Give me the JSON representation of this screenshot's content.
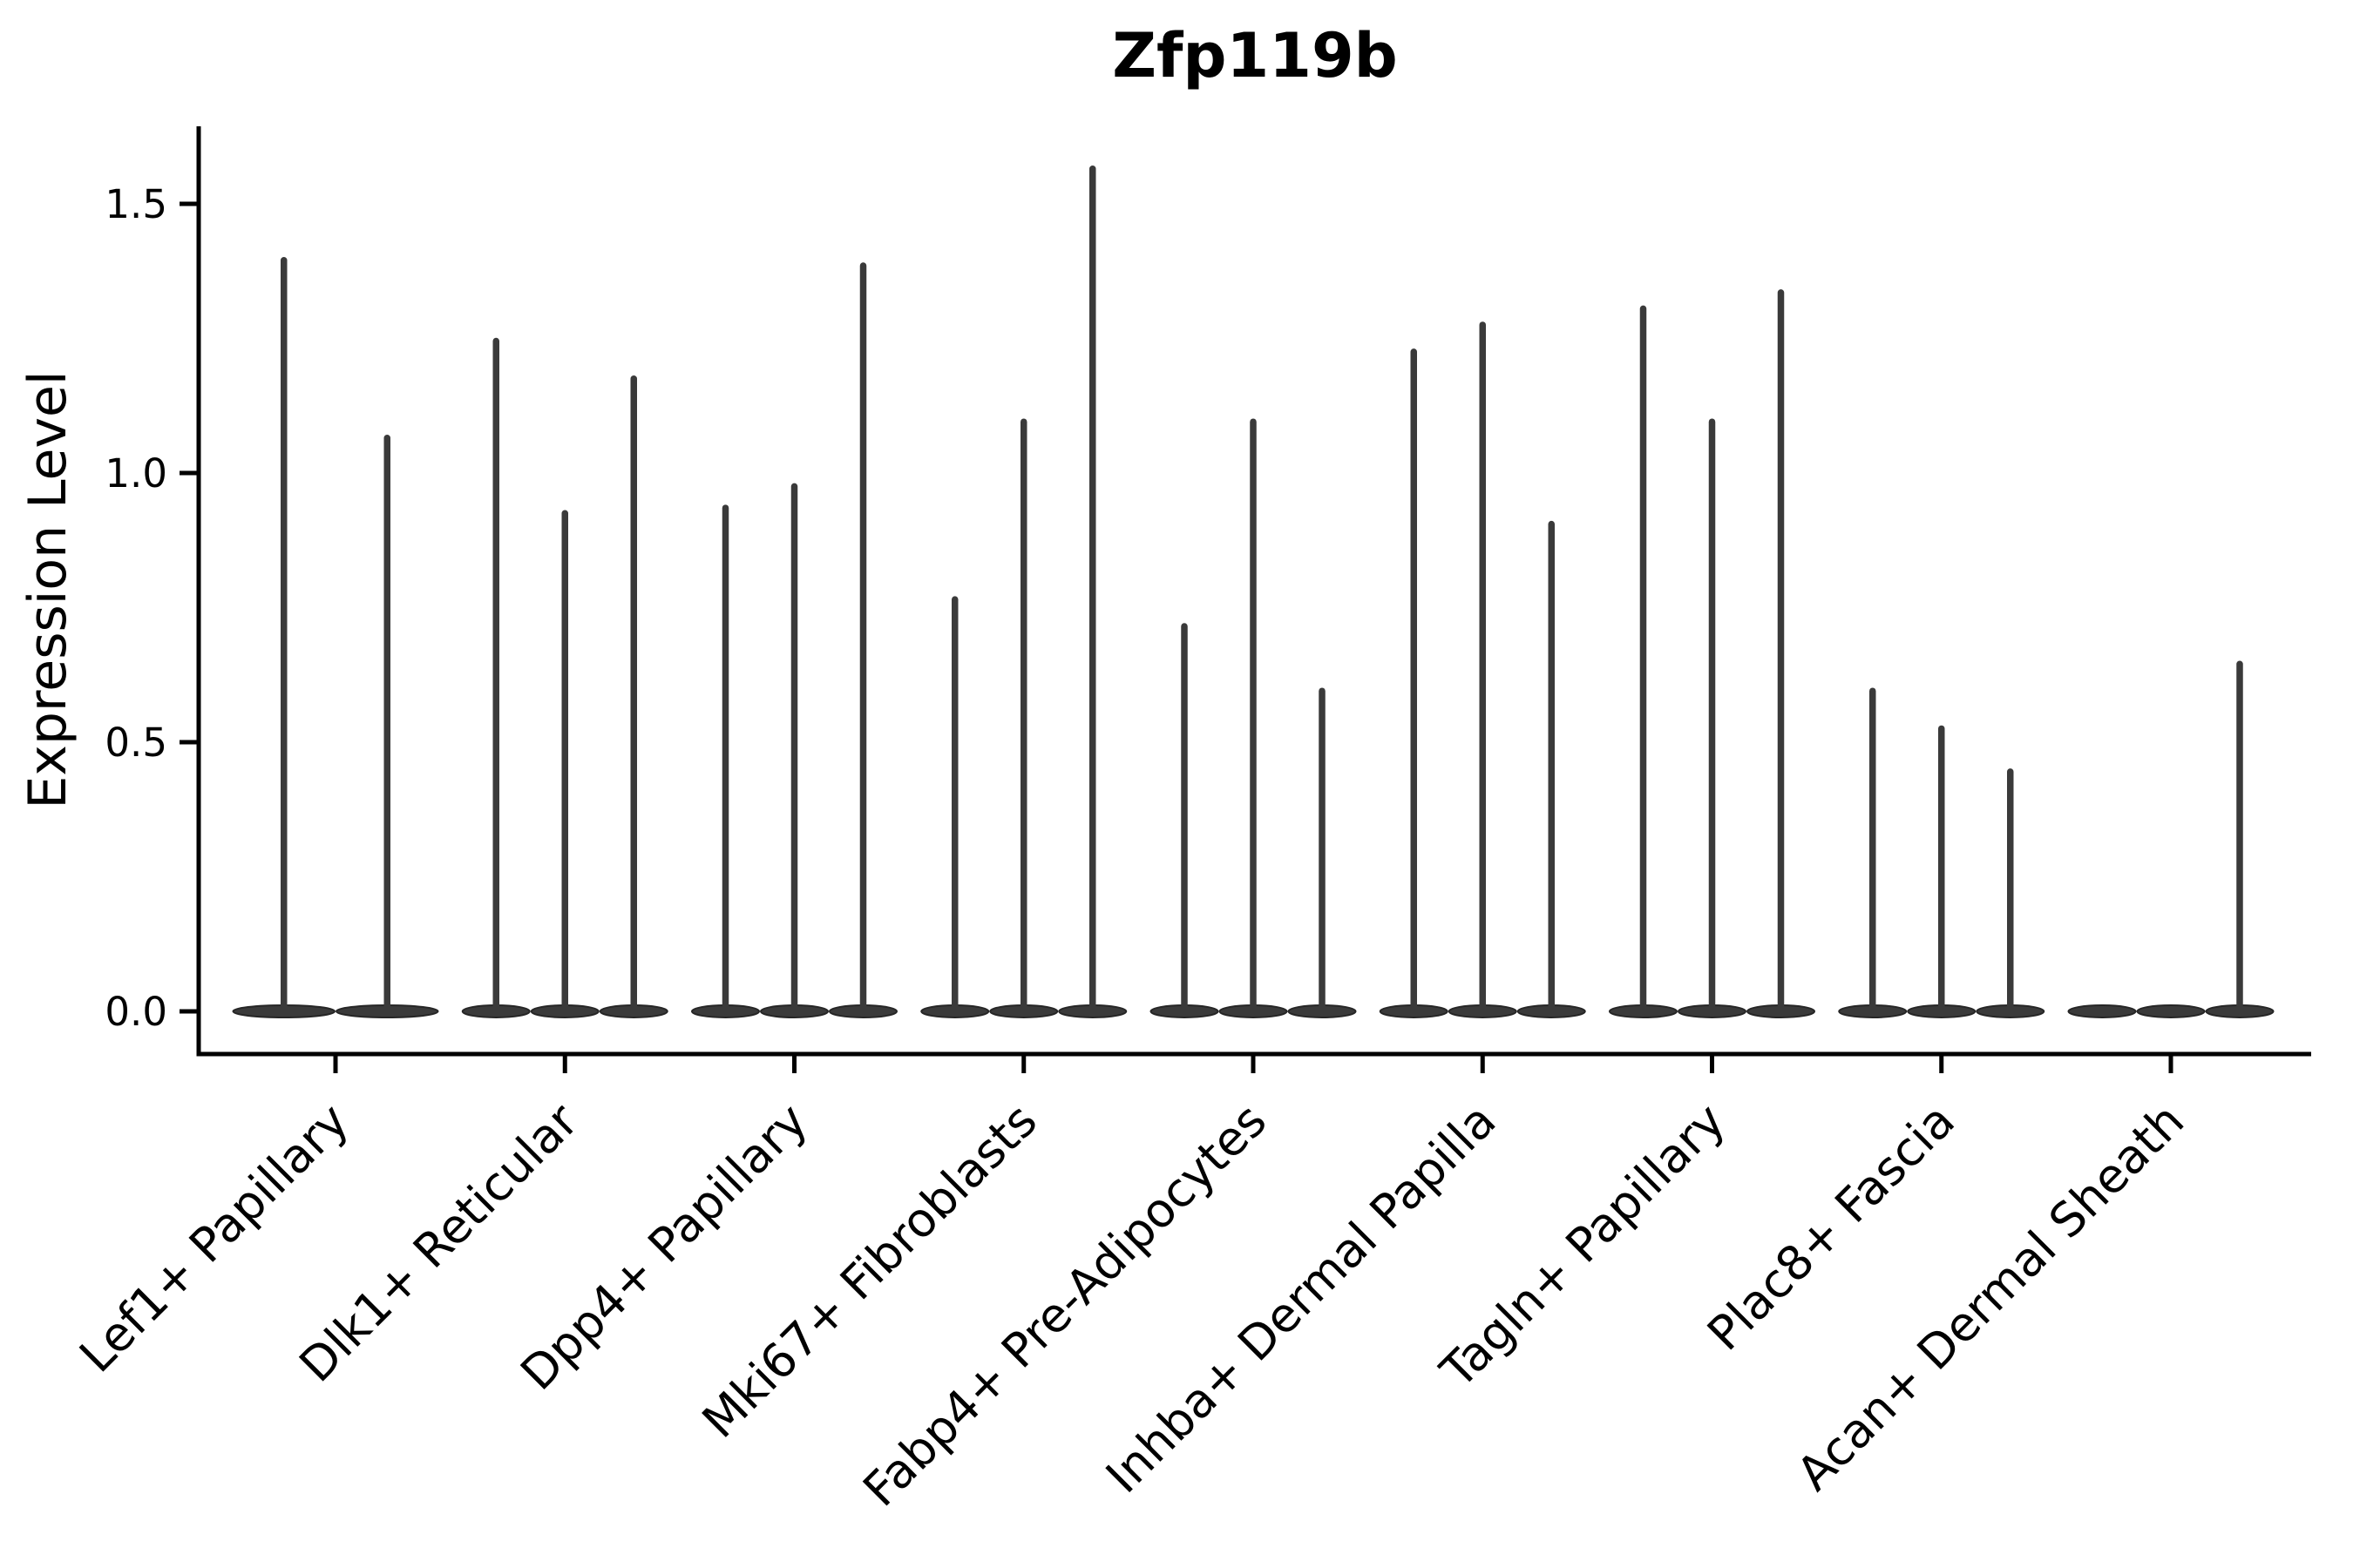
{
  "figure": {
    "title": "Zfp119b",
    "ylabel": "Expression Level",
    "background": "#ffffff",
    "axis_color": "#000000",
    "violin_fill": "#3a3a3a",
    "violin_edge": "#262626"
  },
  "chart_data": {
    "type": "violin",
    "title": "Zfp119b",
    "xlabel": "",
    "ylabel": "Expression Level",
    "ytick_labels": [
      "0.0",
      "0.5",
      "1.0",
      "1.5"
    ],
    "ytick_values": [
      0.0,
      0.5,
      1.0,
      1.5
    ],
    "ylim": [
      -0.08,
      1.64
    ],
    "grid": false,
    "legend": "none",
    "categories": [
      "Lef1+ Papillary",
      "Dlk1+ Reticular",
      "Dpp4+ Papillary",
      "Mki67+ Fibroblasts",
      "Fabp4+ Pre-Adipocytes",
      "Inhba+ Dermal Papilla",
      "Tagln+ Papillary",
      "Plac8+ Fascia",
      "Acan+ Dermal Sheath"
    ],
    "groups": [
      {
        "label": "Lef1+ Papillary",
        "violin_maxima": [
          1.4,
          1.07
        ]
      },
      {
        "label": "Dlk1+ Reticular",
        "violin_maxima": [
          1.25,
          0.93,
          1.18
        ]
      },
      {
        "label": "Dpp4+ Papillary",
        "violin_maxima": [
          0.94,
          0.98,
          1.39
        ]
      },
      {
        "label": "Mki67+ Fibroblasts",
        "violin_maxima": [
          0.77,
          1.1,
          1.57
        ]
      },
      {
        "label": "Fabp4+ Pre-Adipocytes",
        "violin_maxima": [
          0.72,
          1.1,
          0.6
        ]
      },
      {
        "label": "Inhba+ Dermal Papilla",
        "violin_maxima": [
          1.23,
          1.28,
          0.91
        ]
      },
      {
        "label": "Tagln+ Papillary",
        "violin_maxima": [
          1.31,
          1.1,
          1.34
        ]
      },
      {
        "label": "Plac8+ Fascia",
        "violin_maxima": [
          0.6,
          0.53,
          0.45
        ]
      },
      {
        "label": "Acan+ Dermal Sheath",
        "violin_maxima": [
          0.0,
          0.0,
          0.65
        ]
      }
    ],
    "violin_shape_note": "bulk of each distribution at 0 (wide flat lens on baseline) with a thin vertical tail up to the listed maximum; zero maximum means flat lens only"
  }
}
